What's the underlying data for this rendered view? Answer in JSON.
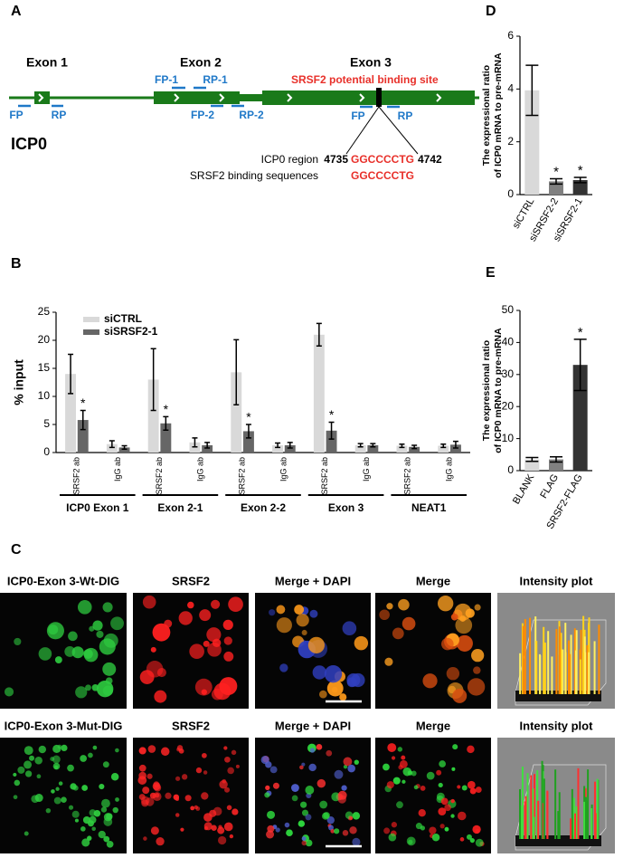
{
  "panel_labels": [
    "A",
    "B",
    "C",
    "D",
    "E"
  ],
  "diagram": {
    "exon_labels": [
      "Exon 1",
      "Exon 2",
      "Exon 3"
    ],
    "site_label": "SRSF2 potential binding site",
    "primers": [
      "FP",
      "RP",
      "FP-1",
      "RP-1",
      "FP-2",
      "RP-2",
      "FP",
      "RP"
    ],
    "gene": "ICP0",
    "region_label": "ICP0 region",
    "binding_label": "SRSF2 binding sequences",
    "start": 4735,
    "end": 4742,
    "region_seq": "GGCCCCTG",
    "binding_seq": "GGCCCCTG"
  },
  "chart_data": [
    {
      "type": "bar",
      "ylabel": "% input",
      "categories": [
        "SRSF2 ab",
        "IgG ab",
        "SRSF2 ab",
        "IgG ab",
        "SRSF2 ab",
        "IgG ab",
        "SRSF2 ab",
        "IgG ab",
        "SRSF2 ab",
        "IgG ab"
      ],
      "groups": [
        "ICP0 Exon 1",
        "Exon 2-1",
        "Exon 2-2",
        "Exon 3",
        "NEAT1"
      ],
      "series": [
        {
          "name": "siCTRL",
          "color": "#d9d9d9",
          "values": [
            14,
            1.5,
            13,
            1.8,
            14.3,
            1.3,
            21,
            1.3,
            1.2,
            1.2
          ],
          "errors": [
            3.5,
            0.6,
            5.5,
            0.8,
            5.8,
            0.4,
            2,
            0.3,
            0.3,
            0.3
          ]
        },
        {
          "name": "siSRSF2-1",
          "color": "#666666",
          "values": [
            5.8,
            0.9,
            5.2,
            1.3,
            3.8,
            1.3,
            3.9,
            1.3,
            1.0,
            1.4
          ],
          "errors": [
            1.7,
            0.3,
            1.2,
            0.5,
            1.2,
            0.5,
            1.5,
            0.3,
            0.3,
            0.6
          ],
          "significance": [
            "*",
            null,
            "*",
            null,
            "*",
            null,
            "*",
            null,
            null,
            null
          ]
        }
      ],
      "ylim": [
        0,
        25
      ],
      "yticks": [
        0,
        5,
        10,
        15,
        20,
        25
      ]
    },
    {
      "type": "bar",
      "ylabel": [
        "The expressional ratio",
        "of ICP0 mRNA to pre-mRNA"
      ],
      "categories": [
        "siCTRL",
        "siSRSF2-2",
        "siSRSF2-1"
      ],
      "values": [
        3.95,
        0.5,
        0.55
      ],
      "errors": [
        0.95,
        0.1,
        0.1
      ],
      "colors": [
        "#d9d9d9",
        "#808080",
        "#333333"
      ],
      "significance": [
        null,
        "*",
        "*"
      ],
      "ylim": [
        0,
        6
      ],
      "yticks": [
        0,
        2,
        4,
        6
      ]
    },
    {
      "type": "bar",
      "ylabel": [
        "The expressional ratio",
        "of ICP0 mRNA to pre-mRNA"
      ],
      "categories": [
        "BLANK",
        "FLAG",
        "SRSF2-FLAG"
      ],
      "values": [
        3.5,
        3.5,
        33
      ],
      "errors": [
        0.6,
        0.8,
        8
      ],
      "colors": [
        "#d9d9d9",
        "#808080",
        "#333333"
      ],
      "significance": [
        null,
        null,
        "*"
      ],
      "ylim": [
        0,
        50
      ],
      "yticks": [
        0,
        10,
        20,
        30,
        40,
        50
      ]
    }
  ],
  "micrographs": {
    "rows": [
      {
        "headers": [
          "ICP0-Exon 3-Wt-DIG",
          "SRSF2",
          "Merge + DAPI",
          "Merge",
          "Intensity plot"
        ]
      },
      {
        "headers": [
          "ICP0-Exon 3-Mut-DIG",
          "SRSF2",
          "Merge + DAPI",
          "Merge",
          "Intensity plot"
        ]
      }
    ]
  }
}
